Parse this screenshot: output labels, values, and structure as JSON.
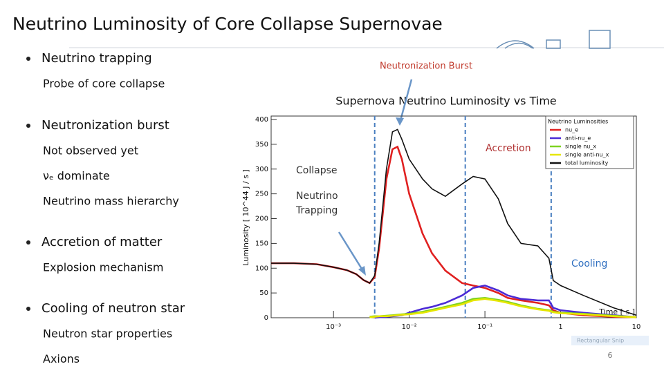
{
  "slide": {
    "title": "Neutrino Luminosity of Core Collapse Supernovae",
    "bullets": [
      {
        "text": "Neutrino trapping",
        "sub": [
          "Probe of core collapse"
        ]
      },
      {
        "text": "Neutronization burst",
        "sub": [
          "Not observed yet",
          "νₑ dominate",
          "Neutrino mass hierarchy"
        ]
      },
      {
        "text": "Accretion of matter",
        "sub": [
          "Explosion mechanism"
        ]
      },
      {
        "text": "Cooling of neutron star",
        "sub": [
          "Neutron star properties",
          "Axions"
        ]
      }
    ],
    "snip_label": "Rectangular Snip",
    "page_number": "6"
  },
  "chart_data": {
    "type": "line",
    "title": "Supernova Neutrino Luminosity  vs  Time",
    "x_label": "Time [ s ]",
    "y_label": "Luminosity [ 10^44 J / s ]",
    "log_x": true,
    "xlim": [
      0.00015,
      10
    ],
    "xticks": [
      {
        "value": 0.001,
        "label": "10⁻³"
      },
      {
        "value": 0.01,
        "label": "10⁻²"
      },
      {
        "value": 0.1,
        "label": "10⁻¹"
      },
      1,
      10
    ],
    "ylim": [
      0,
      400
    ],
    "yticks": [
      0,
      50,
      100,
      150,
      200,
      250,
      300,
      350,
      400
    ],
    "legend_title": "Neutrino Luminosities",
    "legend_position": "upper right",
    "x": [
      0.00015,
      0.0003,
      0.0006,
      0.001,
      0.0015,
      0.002,
      0.0025,
      0.003,
      0.0035,
      0.004,
      0.005,
      0.006,
      0.007,
      0.008,
      0.01,
      0.015,
      0.02,
      0.03,
      0.05,
      0.07,
      0.1,
      0.15,
      0.2,
      0.3,
      0.5,
      0.7,
      0.8,
      1,
      2,
      5,
      10
    ],
    "series": [
      {
        "name": "nu_e",
        "color": "#e02020",
        "values": [
          110,
          110,
          108,
          102,
          96,
          88,
          76,
          70,
          82,
          140,
          280,
          340,
          345,
          320,
          250,
          170,
          130,
          95,
          70,
          65,
          60,
          50,
          40,
          35,
          30,
          25,
          15,
          10,
          5,
          2,
          1
        ]
      },
      {
        "name": "anti-nu_e",
        "color": "#4b2bd6",
        "values": [
          null,
          null,
          null,
          null,
          null,
          null,
          null,
          null,
          0,
          1,
          2,
          3,
          4,
          5,
          10,
          18,
          22,
          30,
          45,
          60,
          65,
          55,
          45,
          38,
          35,
          35,
          20,
          15,
          10,
          5,
          1
        ]
      },
      {
        "name": "single nu_x",
        "color": "#7ed321",
        "values": [
          null,
          null,
          null,
          null,
          null,
          null,
          null,
          2,
          3,
          3,
          4,
          5,
          6,
          7,
          8,
          12,
          16,
          22,
          30,
          38,
          40,
          36,
          32,
          25,
          18,
          15,
          12,
          10,
          8,
          4,
          1
        ]
      },
      {
        "name": "single anti-nu_x",
        "color": "#e6e600",
        "values": [
          null,
          null,
          null,
          null,
          null,
          null,
          null,
          1,
          2,
          3,
          3,
          4,
          5,
          6,
          7,
          10,
          14,
          20,
          27,
          35,
          38,
          34,
          30,
          23,
          17,
          14,
          11,
          9,
          7,
          3,
          1
        ]
      },
      {
        "name": "total luminosity",
        "color": "#111111",
        "values": [
          110,
          110,
          108,
          102,
          96,
          88,
          76,
          70,
          85,
          150,
          300,
          375,
          380,
          360,
          320,
          280,
          260,
          245,
          270,
          285,
          280,
          240,
          190,
          150,
          145,
          120,
          75,
          65,
          45,
          20,
          5
        ]
      }
    ],
    "phase_lines": [
      0.0035,
      0.055,
      0.75
    ],
    "annotations": [
      {
        "text": "Neutronization Burst",
        "color": "#c0392b"
      },
      {
        "text": "Collapse",
        "color": "#333333"
      },
      {
        "text": "Neutrino",
        "color": "#333333"
      },
      {
        "text": "Trapping",
        "color": "#333333"
      },
      {
        "text": "Accretion",
        "color": "#b03030"
      },
      {
        "text": "Cooling",
        "color": "#2f6fc0"
      }
    ]
  }
}
